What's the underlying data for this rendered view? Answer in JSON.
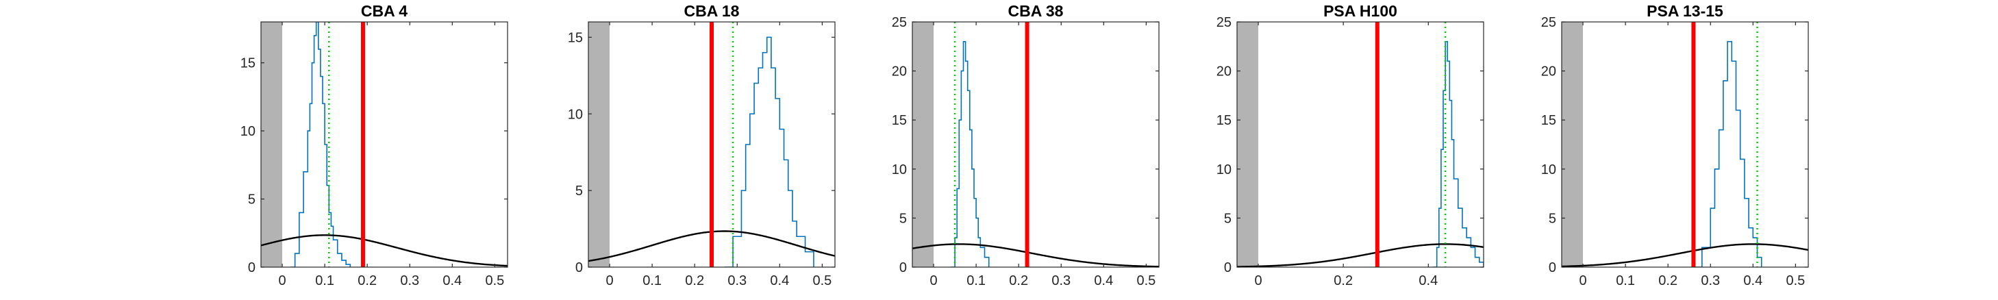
{
  "chart_data": [
    {
      "type": "line",
      "title": "CBA 4",
      "xlim": [
        -0.05,
        0.53
      ],
      "ylim": [
        0,
        18
      ],
      "xticks": [
        0,
        0.1,
        0.2,
        0.3,
        0.4,
        0.5
      ],
      "xticklabels": [
        "0",
        "0.1",
        "0.2",
        "0.3",
        "0.4",
        "0.5"
      ],
      "yticks": [
        0,
        5,
        10,
        15
      ],
      "yticklabels": [
        "0",
        "5",
        "10",
        "15"
      ],
      "shaded_region": [
        -0.05,
        0
      ],
      "red_line_x": 0.19,
      "green_dotted_x": 0.11,
      "black_curve": {
        "mean": 0.1,
        "sd": 0.17
      },
      "histogram": {
        "x": [
          0.02,
          0.03,
          0.04,
          0.05,
          0.06,
          0.065,
          0.07,
          0.075,
          0.08,
          0.085,
          0.09,
          0.095,
          0.1,
          0.105,
          0.11,
          0.115,
          0.12,
          0.13,
          0.14,
          0.15,
          0.16
        ],
        "y": [
          0,
          1,
          4,
          7,
          10,
          12,
          15,
          17,
          18,
          16,
          14,
          12,
          9,
          6,
          4,
          3,
          2,
          1,
          0.5,
          0.2,
          0
        ]
      }
    },
    {
      "type": "line",
      "title": "CBA 18",
      "xlim": [
        -0.05,
        0.53
      ],
      "ylim": [
        0,
        16
      ],
      "xticks": [
        0,
        0.1,
        0.2,
        0.3,
        0.4,
        0.5
      ],
      "xticklabels": [
        "0",
        "0.1",
        "0.2",
        "0.3",
        "0.4",
        "0.5"
      ],
      "yticks": [
        0,
        5,
        10,
        15
      ],
      "yticklabels": [
        "0",
        "5",
        "10",
        "15"
      ],
      "shaded_region": [
        -0.05,
        0
      ],
      "red_line_x": 0.24,
      "green_dotted_x": 0.29,
      "black_curve": {
        "mean": 0.27,
        "sd": 0.17
      },
      "histogram": {
        "x": [
          0.27,
          0.29,
          0.31,
          0.32,
          0.33,
          0.34,
          0.35,
          0.36,
          0.37,
          0.38,
          0.39,
          0.4,
          0.41,
          0.42,
          0.43,
          0.44,
          0.46,
          0.48
        ],
        "y": [
          0,
          2,
          5,
          8,
          10,
          12,
          13,
          14,
          15,
          13,
          11,
          9,
          7,
          5,
          3,
          2,
          1,
          0
        ]
      }
    },
    {
      "type": "line",
      "title": "CBA 38",
      "xlim": [
        -0.05,
        0.53
      ],
      "ylim": [
        0,
        25
      ],
      "xticks": [
        0,
        0.1,
        0.2,
        0.3,
        0.4,
        0.5
      ],
      "xticklabels": [
        "0",
        "0.1",
        "0.2",
        "0.3",
        "0.4",
        "0.5"
      ],
      "yticks": [
        0,
        5,
        10,
        15,
        20,
        25
      ],
      "yticklabels": [
        "0",
        "5",
        "10",
        "15",
        "20",
        "25"
      ],
      "shaded_region": [
        -0.05,
        0
      ],
      "red_line_x": 0.22,
      "green_dotted_x": 0.05,
      "black_curve": {
        "mean": 0.06,
        "sd": 0.17
      },
      "histogram": {
        "x": [
          0.04,
          0.05,
          0.055,
          0.06,
          0.065,
          0.07,
          0.075,
          0.08,
          0.085,
          0.09,
          0.095,
          0.1,
          0.105,
          0.11,
          0.12,
          0.13
        ],
        "y": [
          0,
          3,
          8,
          15,
          20,
          23,
          21,
          18,
          14,
          10,
          7,
          5,
          3,
          2,
          1,
          0
        ]
      }
    },
    {
      "type": "line",
      "title": "PSA H100",
      "xlim": [
        -0.05,
        0.53
      ],
      "ylim": [
        0,
        25
      ],
      "xticks": [
        0,
        0.2,
        0.4
      ],
      "xticklabels": [
        "0",
        "0.2",
        "0.4"
      ],
      "yticks": [
        0,
        5,
        10,
        15,
        20,
        25
      ],
      "yticklabels": [
        "0",
        "5",
        "10",
        "15",
        "20",
        "25"
      ],
      "shaded_region": [
        -0.05,
        0
      ],
      "red_line_x": 0.28,
      "green_dotted_x": 0.44,
      "black_curve": {
        "mean": 0.44,
        "sd": 0.17
      },
      "histogram": {
        "x": [
          0.41,
          0.42,
          0.425,
          0.43,
          0.435,
          0.44,
          0.445,
          0.45,
          0.455,
          0.46,
          0.47,
          0.48,
          0.49,
          0.5,
          0.51,
          0.52,
          0.53
        ],
        "y": [
          0,
          2,
          6,
          12,
          18,
          23,
          21,
          17,
          13,
          9,
          6,
          4,
          3,
          2,
          1,
          0.5,
          0
        ]
      }
    },
    {
      "type": "line",
      "title": "PSA 13-15",
      "xlim": [
        -0.05,
        0.53
      ],
      "ylim": [
        0,
        25
      ],
      "xticks": [
        0,
        0.1,
        0.2,
        0.3,
        0.4,
        0.5
      ],
      "xticklabels": [
        "0",
        "0.1",
        "0.2",
        "0.3",
        "0.4",
        "0.5"
      ],
      "yticks": [
        0,
        5,
        10,
        15,
        20,
        25
      ],
      "yticklabels": [
        "0",
        "5",
        "10",
        "15",
        "20",
        "25"
      ],
      "shaded_region": [
        -0.05,
        0
      ],
      "red_line_x": 0.26,
      "green_dotted_x": 0.41,
      "black_curve": {
        "mean": 0.4,
        "sd": 0.17
      },
      "histogram": {
        "x": [
          0.26,
          0.28,
          0.3,
          0.31,
          0.32,
          0.33,
          0.34,
          0.35,
          0.36,
          0.37,
          0.38,
          0.39,
          0.4,
          0.41,
          0.42
        ],
        "y": [
          0,
          2,
          6,
          10,
          14,
          19,
          23,
          21,
          16,
          11,
          7,
          4,
          3,
          1,
          0
        ]
      }
    }
  ],
  "colors": {
    "histogram": "#0072bd",
    "red_line": "#ff0000",
    "green_dotted": "#00cc00",
    "black_curve": "#000000",
    "shade": "#b3b3b3",
    "axes": "#262626"
  }
}
